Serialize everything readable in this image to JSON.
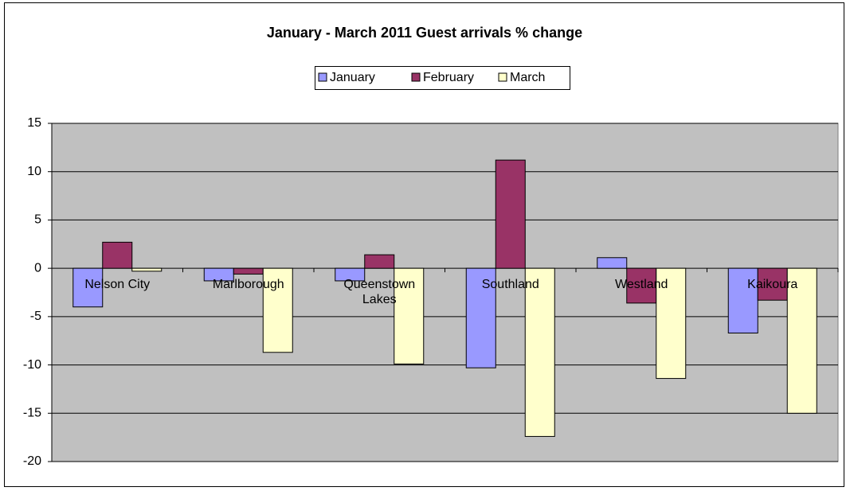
{
  "chart_data": {
    "type": "bar",
    "title": "January - March 2011 Guest arrivals % change",
    "categories": [
      "Nelson City",
      "Marlborough",
      "Queenstown Lakes",
      "Southland",
      "Westland",
      "Kaikoura"
    ],
    "series": [
      {
        "name": "January",
        "color": "#9999ff",
        "values": [
          -4,
          -1.3,
          -1.3,
          -10.3,
          1.1,
          -6.7
        ]
      },
      {
        "name": "February",
        "color": "#993366",
        "values": [
          2.7,
          -0.6,
          1.4,
          11.2,
          -3.6,
          -3.3
        ]
      },
      {
        "name": "March",
        "color": "#ffffcc",
        "values": [
          -0.3,
          -8.7,
          -9.9,
          -17.4,
          -11.4,
          -15
        ]
      }
    ],
    "ylim": [
      -20,
      15
    ],
    "yticks": [
      -20,
      -15,
      -10,
      -5,
      0,
      5,
      10,
      15
    ],
    "grid": true,
    "legend": "top"
  }
}
